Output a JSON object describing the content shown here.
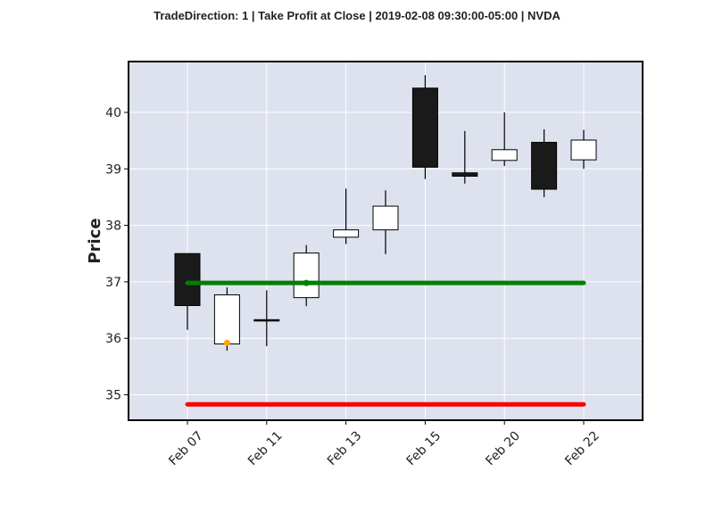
{
  "chart_data": {
    "type": "candlestick",
    "title": "TradeDirection: 1 | Take Profit at Close | 2019-02-08 09:30:00-05:00 | NVDA",
    "ylabel": "Price",
    "xlabel": "",
    "ylim": [
      34.55,
      40.9
    ],
    "yticks": [
      35,
      36,
      37,
      38,
      39,
      40
    ],
    "grid": true,
    "xtick_labels": [
      {
        "index": 0,
        "label": "Feb 07"
      },
      {
        "index": 2,
        "label": "Feb 11"
      },
      {
        "index": 4,
        "label": "Feb 13"
      },
      {
        "index": 6,
        "label": "Feb 15"
      },
      {
        "index": 8,
        "label": "Feb 20"
      },
      {
        "index": 10,
        "label": "Feb 22"
      }
    ],
    "candles": [
      {
        "open": 37.5,
        "high": 37.5,
        "low": 36.15,
        "close": 36.58
      },
      {
        "open": 35.9,
        "high": 36.9,
        "low": 35.78,
        "close": 36.77
      },
      {
        "open": 36.33,
        "high": 36.85,
        "low": 35.86,
        "close": 36.31
      },
      {
        "open": 36.72,
        "high": 37.65,
        "low": 36.57,
        "close": 37.51
      },
      {
        "open": 37.79,
        "high": 38.65,
        "low": 37.67,
        "close": 37.92
      },
      {
        "open": 37.92,
        "high": 38.62,
        "low": 37.49,
        "close": 38.34
      },
      {
        "open": 40.43,
        "high": 40.66,
        "low": 38.82,
        "close": 39.03
      },
      {
        "open": 38.93,
        "high": 39.67,
        "low": 38.74,
        "close": 38.87
      },
      {
        "open": 39.15,
        "high": 40.0,
        "low": 39.05,
        "close": 39.34
      },
      {
        "open": 39.47,
        "high": 39.7,
        "low": 38.5,
        "close": 38.64
      },
      {
        "open": 39.16,
        "high": 39.69,
        "low": 39.0,
        "close": 39.51
      }
    ],
    "lines": [
      {
        "name": "take-profit",
        "y": 36.98,
        "x_start": 0,
        "x_end": 10,
        "color": "#008000"
      },
      {
        "name": "stop-loss",
        "y": 34.83,
        "x_start": 0,
        "x_end": 10,
        "color": "#ff0000"
      }
    ],
    "markers": [
      {
        "name": "entry-marker",
        "x": 1,
        "y": 35.92,
        "color": "#ffa500"
      },
      {
        "name": "exit-marker",
        "x": 3,
        "y": 36.98,
        "color": "#008000"
      }
    ],
    "colors": {
      "up_fill": "#ffffff",
      "down_fill": "#1a1a1a",
      "edge": "#000000",
      "plot_background": "#dde2ee",
      "grid": "#ffffff"
    }
  }
}
